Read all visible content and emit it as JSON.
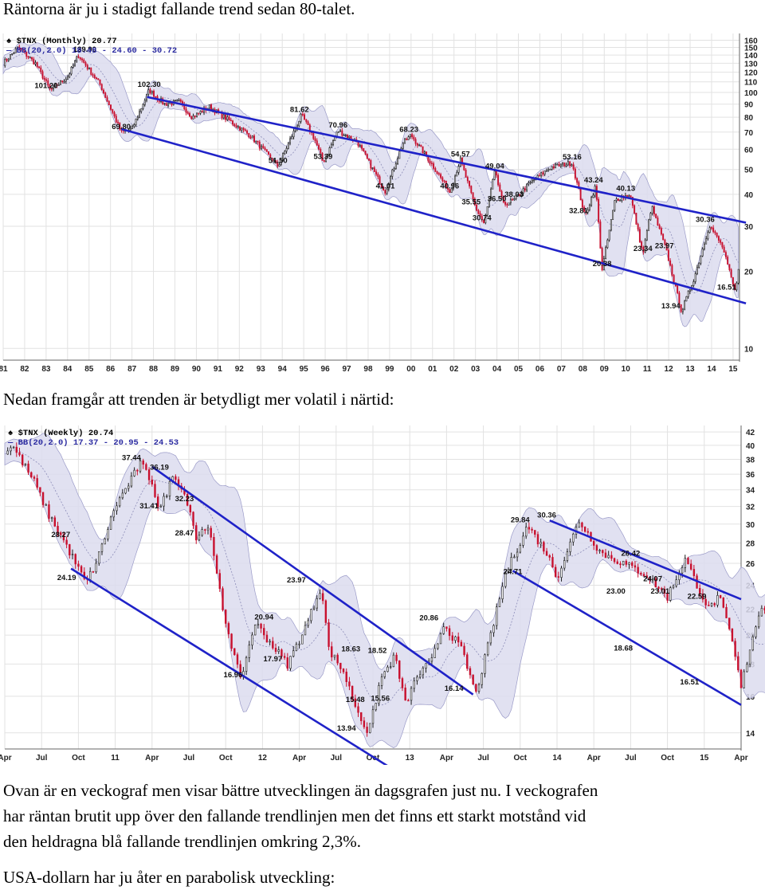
{
  "text": {
    "intro": "Räntorna är ju i stadigt fallande trend sedan 80-talet.",
    "mid": "Nedan framgår att trenden är betydligt mer volatil i närtid:",
    "para_line1": "Ovan är en veckograf men visar bättre utvecklingen än dagsgrafen just nu. I veckografen",
    "para_line2": "har räntan brutit upp över den fallande trendlinjen men det finns ett starkt motstånd vid",
    "para_line3": "den heldragna blå fallande trendlinjen omkring 2,3%.",
    "usd": "USA-dollarn har ju åter en parabolisk utveckling:"
  },
  "colors": {
    "bull": "#1a1a1a",
    "bear": "#c8102e",
    "band": "#dcdcef",
    "trend": "#1f22c8",
    "grid": "#e2e2e2"
  },
  "chart_data": [
    {
      "type": "candlestick",
      "header_symbol": "$TNX (Monthly) 20.77",
      "header_bb": "BB(20,2.0) 18.48 - 24.60 - 30.72",
      "x_ticks": [
        "81",
        "82",
        "83",
        "84",
        "85",
        "86",
        "87",
        "88",
        "89",
        "90",
        "91",
        "92",
        "93",
        "94",
        "95",
        "96",
        "97",
        "98",
        "99",
        "00",
        "01",
        "02",
        "03",
        "04",
        "05",
        "06",
        "07",
        "08",
        "09",
        "10",
        "11",
        "12",
        "13",
        "14",
        "15"
      ],
      "y_ticks": [
        160,
        150,
        140,
        130,
        120,
        110,
        100,
        90,
        80,
        70,
        60,
        50,
        40,
        30,
        20,
        10
      ],
      "y_scale": "log",
      "ylim": [
        9,
        170
      ],
      "xlim": [
        1981.0,
        2015.3
      ],
      "key_points": [
        {
          "t": 1981.0,
          "v": 130
        },
        {
          "t": 1981.7,
          "v": 150
        },
        {
          "t": 1982.5,
          "v": 130
        },
        {
          "t": 1983.2,
          "v": 102
        },
        {
          "t": 1984.0,
          "v": 115
        },
        {
          "t": 1984.5,
          "v": 139.9
        },
        {
          "t": 1985.5,
          "v": 108
        },
        {
          "t": 1986.5,
          "v": 70
        },
        {
          "t": 1987.0,
          "v": 72
        },
        {
          "t": 1987.8,
          "v": 102.3
        },
        {
          "t": 1988.5,
          "v": 90
        },
        {
          "t": 1989.2,
          "v": 92
        },
        {
          "t": 1989.8,
          "v": 80
        },
        {
          "t": 1990.6,
          "v": 88
        },
        {
          "t": 1991.5,
          "v": 78
        },
        {
          "t": 1992.5,
          "v": 68
        },
        {
          "t": 1993.8,
          "v": 51.5
        },
        {
          "t": 1994.9,
          "v": 81.62
        },
        {
          "t": 1995.5,
          "v": 66
        },
        {
          "t": 1995.9,
          "v": 53.39
        },
        {
          "t": 1996.6,
          "v": 70.96
        },
        {
          "t": 1997.5,
          "v": 64
        },
        {
          "t": 1998.8,
          "v": 41.01
        },
        {
          "t": 1999.6,
          "v": 63
        },
        {
          "t": 2000.0,
          "v": 68.23
        },
        {
          "t": 2001.0,
          "v": 52
        },
        {
          "t": 2001.8,
          "v": 40.96
        },
        {
          "t": 2002.3,
          "v": 54.57
        },
        {
          "t": 2003.0,
          "v": 35.55
        },
        {
          "t": 2003.4,
          "v": 30.74
        },
        {
          "t": 2003.9,
          "v": 49.04
        },
        {
          "t": 2004.3,
          "v": 36.5
        },
        {
          "t": 2004.8,
          "v": 38.03
        },
        {
          "t": 2005.5,
          "v": 44
        },
        {
          "t": 2006.5,
          "v": 51
        },
        {
          "t": 2007.5,
          "v": 53.16
        },
        {
          "t": 2008.1,
          "v": 32.81
        },
        {
          "t": 2008.6,
          "v": 43.24
        },
        {
          "t": 2008.9,
          "v": 20.38
        },
        {
          "t": 2009.5,
          "v": 38
        },
        {
          "t": 2010.2,
          "v": 40.13
        },
        {
          "t": 2010.8,
          "v": 23.34
        },
        {
          "t": 2011.2,
          "v": 36
        },
        {
          "t": 2011.9,
          "v": 23.97
        },
        {
          "t": 2012.6,
          "v": 13.94
        },
        {
          "t": 2013.2,
          "v": 19
        },
        {
          "t": 2013.9,
          "v": 30.36
        },
        {
          "t": 2014.5,
          "v": 25
        },
        {
          "t": 2015.1,
          "v": 16.51
        },
        {
          "t": 2015.25,
          "v": 20.77
        }
      ],
      "annotations": [
        {
          "t": 1984.8,
          "v": 139.9,
          "label": "139.90"
        },
        {
          "t": 1983.0,
          "v": 101.2,
          "label": "101.20"
        },
        {
          "t": 1987.8,
          "v": 102.3,
          "label": "102.30"
        },
        {
          "t": 1986.5,
          "v": 69.8,
          "label": "69.80"
        },
        {
          "t": 1993.8,
          "v": 51.5,
          "label": "51.50"
        },
        {
          "t": 1994.8,
          "v": 81.62,
          "label": "81.62"
        },
        {
          "t": 1995.9,
          "v": 53.39,
          "label": "53.39"
        },
        {
          "t": 1996.6,
          "v": 70.96,
          "label": "70.96"
        },
        {
          "t": 1998.8,
          "v": 41.01,
          "label": "41.01"
        },
        {
          "t": 1999.9,
          "v": 68.23,
          "label": "68.23"
        },
        {
          "t": 2001.8,
          "v": 40.96,
          "label": "40.96"
        },
        {
          "t": 2002.3,
          "v": 54.57,
          "label": "54.57"
        },
        {
          "t": 2002.8,
          "v": 35.55,
          "label": "35.55"
        },
        {
          "t": 2003.3,
          "v": 30.74,
          "label": "30.74"
        },
        {
          "t": 2003.9,
          "v": 49.04,
          "label": "49.04"
        },
        {
          "t": 2004.0,
          "v": 36.5,
          "label": "36.50"
        },
        {
          "t": 2004.8,
          "v": 38.03,
          "label": "38.03"
        },
        {
          "t": 2007.5,
          "v": 53.16,
          "label": "53.16"
        },
        {
          "t": 2008.5,
          "v": 43.24,
          "label": "43.24"
        },
        {
          "t": 2007.8,
          "v": 32.81,
          "label": "32.81"
        },
        {
          "t": 2008.9,
          "v": 20.38,
          "label": "20.38"
        },
        {
          "t": 2010.0,
          "v": 40.13,
          "label": "40.13"
        },
        {
          "t": 2010.8,
          "v": 23.34,
          "label": "23.34"
        },
        {
          "t": 2011.8,
          "v": 23.97,
          "label": "23.97"
        },
        {
          "t": 2012.1,
          "v": 13.94,
          "label": "13.94"
        },
        {
          "t": 2013.7,
          "v": 30.36,
          "label": "30.36"
        },
        {
          "t": 2014.7,
          "v": 16.51,
          "label": "16.51"
        }
      ],
      "trendlines": [
        {
          "t1": 1987.7,
          "v1": 96,
          "t2": 2015.6,
          "v2": 31
        },
        {
          "t1": 1986.5,
          "v1": 72,
          "t2": 2015.6,
          "v2": 15
        }
      ]
    },
    {
      "type": "candlestick",
      "header_symbol": "$TNX (Weekly) 20.74",
      "header_bb": "BB(20,2.0) 17.37 - 20.95 - 24.53",
      "x_ticks": [
        "Apr",
        "Jul",
        "Oct",
        "11",
        "Apr",
        "Jul",
        "Oct",
        "12",
        "Apr",
        "Jul",
        "Oct",
        "13",
        "Apr",
        "Jul",
        "Oct",
        "14",
        "Apr",
        "Jul",
        "Oct",
        "15",
        "Apr"
      ],
      "x_tick_pos": [
        0,
        0.25,
        0.5,
        0.75,
        1.0,
        1.25,
        1.5,
        1.75,
        2.0,
        2.25,
        2.5,
        2.75,
        3.0,
        3.25,
        3.5,
        3.75,
        4.0,
        4.25,
        4.5,
        4.75,
        5.0
      ],
      "y_ticks": [
        42,
        40,
        38,
        36,
        34,
        32,
        30,
        28,
        26,
        24,
        22,
        20,
        18,
        16,
        14
      ],
      "y_scale": "log",
      "ylim": [
        13.2,
        43
      ],
      "xlim": [
        0,
        5.0
      ],
      "key_points": [
        {
          "t": 0.0,
          "v": 39
        },
        {
          "t": 0.05,
          "v": 40
        },
        {
          "t": 0.2,
          "v": 35
        },
        {
          "t": 0.3,
          "v": 31
        },
        {
          "t": 0.4,
          "v": 28.27
        },
        {
          "t": 0.55,
          "v": 24.19
        },
        {
          "t": 0.62,
          "v": 26
        },
        {
          "t": 0.75,
          "v": 32
        },
        {
          "t": 0.85,
          "v": 35
        },
        {
          "t": 0.92,
          "v": 37.44
        },
        {
          "t": 1.0,
          "v": 35
        },
        {
          "t": 1.05,
          "v": 31.41
        },
        {
          "t": 1.15,
          "v": 36.19
        },
        {
          "t": 1.25,
          "v": 32.23
        },
        {
          "t": 1.3,
          "v": 28.47
        },
        {
          "t": 1.38,
          "v": 30
        },
        {
          "t": 1.48,
          "v": 22
        },
        {
          "t": 1.6,
          "v": 16.96
        },
        {
          "t": 1.7,
          "v": 20.94
        },
        {
          "t": 1.8,
          "v": 19.5
        },
        {
          "t": 1.92,
          "v": 17.97
        },
        {
          "t": 2.05,
          "v": 20.8
        },
        {
          "t": 2.15,
          "v": 23.97
        },
        {
          "t": 2.2,
          "v": 19
        },
        {
          "t": 2.3,
          "v": 17.5
        },
        {
          "t": 2.38,
          "v": 15.48
        },
        {
          "t": 2.47,
          "v": 13.94
        },
        {
          "t": 2.55,
          "v": 17
        },
        {
          "t": 2.65,
          "v": 18.52
        },
        {
          "t": 2.72,
          "v": 15.56
        },
        {
          "t": 2.8,
          "v": 17.2
        },
        {
          "t": 2.9,
          "v": 18.2
        },
        {
          "t": 2.98,
          "v": 20.86
        },
        {
          "t": 3.1,
          "v": 19
        },
        {
          "t": 3.2,
          "v": 16.14
        },
        {
          "t": 3.3,
          "v": 20
        },
        {
          "t": 3.4,
          "v": 25
        },
        {
          "t": 3.55,
          "v": 29.84
        },
        {
          "t": 3.68,
          "v": 27
        },
        {
          "t": 3.75,
          "v": 24.71
        },
        {
          "t": 3.9,
          "v": 30.36
        },
        {
          "t": 4.05,
          "v": 27
        },
        {
          "t": 4.2,
          "v": 26
        },
        {
          "t": 4.35,
          "v": 25
        },
        {
          "t": 4.5,
          "v": 23.0
        },
        {
          "t": 4.62,
          "v": 26.42
        },
        {
          "t": 4.7,
          "v": 24.07
        },
        {
          "t": 4.78,
          "v": 22
        },
        {
          "t": 4.85,
          "v": 23.01
        },
        {
          "t": 4.93,
          "v": 20
        },
        {
          "t": 5.0,
          "v": 16.51
        },
        {
          "t": 5.08,
          "v": 20
        },
        {
          "t": 5.15,
          "v": 22.59
        },
        {
          "t": 5.2,
          "v": 20.74
        }
      ],
      "annotations": [
        {
          "t": 0.38,
          "v": 28.27,
          "label": "28.27"
        },
        {
          "t": 0.42,
          "v": 24.19,
          "label": "24.19"
        },
        {
          "t": 0.86,
          "v": 37.44,
          "label": "37.44"
        },
        {
          "t": 1.05,
          "v": 36.19,
          "label": "36.19"
        },
        {
          "t": 0.98,
          "v": 31.41,
          "label": "31.41"
        },
        {
          "t": 1.22,
          "v": 32.23,
          "label": "32.23"
        },
        {
          "t": 1.22,
          "v": 28.47,
          "label": "28.47"
        },
        {
          "t": 1.55,
          "v": 16.96,
          "label": "16.96"
        },
        {
          "t": 1.76,
          "v": 20.94,
          "label": "20.94"
        },
        {
          "t": 1.82,
          "v": 17.97,
          "label": "17.97"
        },
        {
          "t": 1.98,
          "v": 23.97,
          "label": "23.97"
        },
        {
          "t": 2.35,
          "v": 18.63,
          "label": "18.63"
        },
        {
          "t": 2.53,
          "v": 18.52,
          "label": "18.52"
        },
        {
          "t": 2.38,
          "v": 15.48,
          "label": "15.48"
        },
        {
          "t": 2.55,
          "v": 15.56,
          "label": "15.56"
        },
        {
          "t": 2.32,
          "v": 13.94,
          "label": "13.94"
        },
        {
          "t": 2.88,
          "v": 20.86,
          "label": "20.86"
        },
        {
          "t": 3.05,
          "v": 16.14,
          "label": "16.14"
        },
        {
          "t": 3.5,
          "v": 29.84,
          "label": "29.84"
        },
        {
          "t": 3.45,
          "v": 24.71,
          "label": "24.71"
        },
        {
          "t": 3.68,
          "v": 30.36,
          "label": "30.36"
        },
        {
          "t": 4.15,
          "v": 23.0,
          "label": "23.00"
        },
        {
          "t": 4.25,
          "v": 26.42,
          "label": "26.42"
        },
        {
          "t": 4.4,
          "v": 24.07,
          "label": "24.07"
        },
        {
          "t": 4.45,
          "v": 23.01,
          "label": "23.01"
        },
        {
          "t": 4.2,
          "v": 18.68,
          "label": "18.68"
        },
        {
          "t": 4.65,
          "v": 16.51,
          "label": "16.51"
        },
        {
          "t": 4.7,
          "v": 22.59,
          "label": "22.59"
        }
      ],
      "trendlines": [
        {
          "t1": 0.45,
          "v1": 25.5,
          "t2": 2.8,
          "v2": 11.6
        },
        {
          "t1": 1.0,
          "v1": 37.0,
          "t2": 3.18,
          "v2": 16.1
        },
        {
          "t1": 3.45,
          "v1": 25.3,
          "t2": 5.0,
          "v2": 15.5
        },
        {
          "t1": 3.7,
          "v1": 30.4,
          "t2": 5.0,
          "v2": 22.8
        }
      ]
    }
  ]
}
